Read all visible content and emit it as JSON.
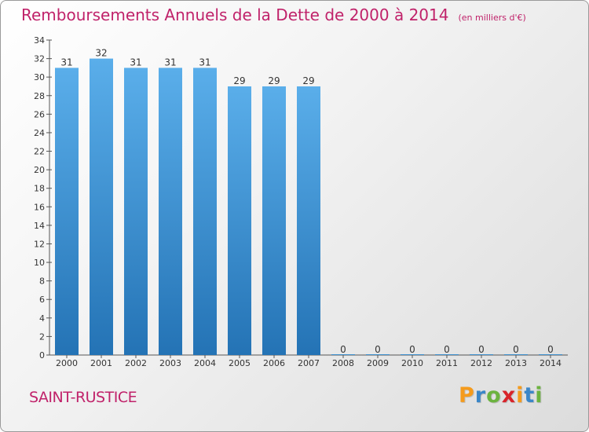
{
  "title": "Remboursements Annuels de la Dette de 2000 à 2014",
  "unit": "(en milliers d'€)",
  "commune": "SAINT-RUSTICE",
  "logo": {
    "letters": [
      "P",
      "r",
      "o",
      "x",
      "i",
      "t",
      "i"
    ],
    "colors": [
      "#f59b1c",
      "#3a86c8",
      "#6cb33f",
      "#d8232a",
      "#f59b1c",
      "#3a86c8",
      "#6cb33f"
    ]
  },
  "colors": {
    "bar_top": "#5aaeea",
    "bar_bottom": "#2473b5",
    "title": "#c0226a"
  },
  "chart_data": {
    "type": "bar",
    "title": "Remboursements Annuels de la Dette de 2000 à 2014",
    "xlabel": "",
    "ylabel": "",
    "ylim": [
      0,
      34
    ],
    "yticks": [
      0,
      2,
      4,
      6,
      8,
      10,
      12,
      14,
      16,
      18,
      20,
      22,
      24,
      26,
      28,
      30,
      32,
      34
    ],
    "categories": [
      "2000",
      "2001",
      "2002",
      "2003",
      "2004",
      "2005",
      "2006",
      "2007",
      "2008",
      "2009",
      "2010",
      "2011",
      "2012",
      "2013",
      "2014"
    ],
    "values": [
      31,
      32,
      31,
      31,
      31,
      29,
      29,
      29,
      0,
      0,
      0,
      0,
      0,
      0,
      0
    ],
    "grid": false,
    "legend": "none"
  }
}
